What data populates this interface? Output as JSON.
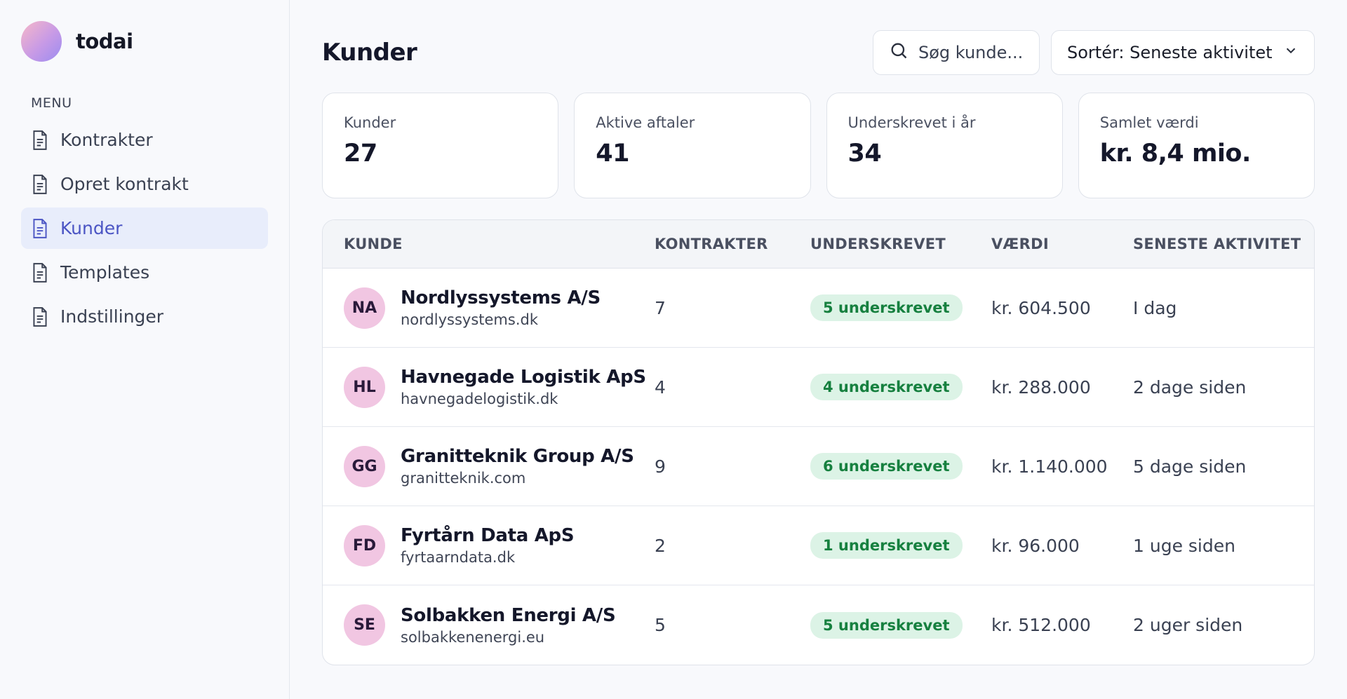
{
  "brand": {
    "name": "todai"
  },
  "sidebar": {
    "menu_label": "MENU",
    "items": [
      {
        "label": "Kontrakter",
        "icon": "document-icon",
        "active": false
      },
      {
        "label": "Opret kontrakt",
        "icon": "document-icon",
        "active": false
      },
      {
        "label": "Kunder",
        "icon": "document-icon",
        "active": true
      },
      {
        "label": "Templates",
        "icon": "document-icon",
        "active": false
      },
      {
        "label": "Indstillinger",
        "icon": "document-icon",
        "active": false
      }
    ]
  },
  "header": {
    "title": "Kunder",
    "search_placeholder": "Søg kunde...",
    "sort_label": "Sortér: Seneste aktivitet"
  },
  "stats": [
    {
      "label": "Kunder",
      "value": "27"
    },
    {
      "label": "Aktive aftaler",
      "value": "41"
    },
    {
      "label": "Underskrevet i år",
      "value": "34"
    },
    {
      "label": "Samlet værdi",
      "value": "kr. 8,4 mio."
    }
  ],
  "table": {
    "columns": [
      "KUNDE",
      "KONTRAKTER",
      "UNDERSKREVET",
      "VÆRDI",
      "SENESTE AKTIVITET"
    ],
    "rows": [
      {
        "initials": "NA",
        "name": "Nordlyssystems A/S",
        "domain": "nordlyssystems.dk",
        "contracts": "7",
        "signed": "5 underskrevet",
        "value": "kr. 604.500",
        "activity": "I dag"
      },
      {
        "initials": "HL",
        "name": "Havnegade Logistik ApS",
        "domain": "havnegadelogistik.dk",
        "contracts": "4",
        "signed": "4 underskrevet",
        "value": "kr. 288.000",
        "activity": "2 dage siden"
      },
      {
        "initials": "GG",
        "name": "Granitteknik Group A/S",
        "domain": "granitteknik.com",
        "contracts": "9",
        "signed": "6 underskrevet",
        "value": "kr. 1.140.000",
        "activity": "5 dage siden"
      },
      {
        "initials": "FD",
        "name": "Fyrtårn Data ApS",
        "domain": "fyrtaarndata.dk",
        "contracts": "2",
        "signed": "1 underskrevet",
        "value": "kr. 96.000",
        "activity": "1 uge siden"
      },
      {
        "initials": "SE",
        "name": "Solbakken Energi A/S",
        "domain": "solbakkenenergi.eu",
        "contracts": "5",
        "signed": "5 underskrevet",
        "value": "kr. 512.000",
        "activity": "2 uger siden"
      }
    ]
  },
  "colors": {
    "accent": "#4b55c4",
    "active_bg": "#e8edfb",
    "badge_bg": "#dcf3e6",
    "badge_text": "#16803f",
    "avatar_bg": "#f1c6e2"
  }
}
